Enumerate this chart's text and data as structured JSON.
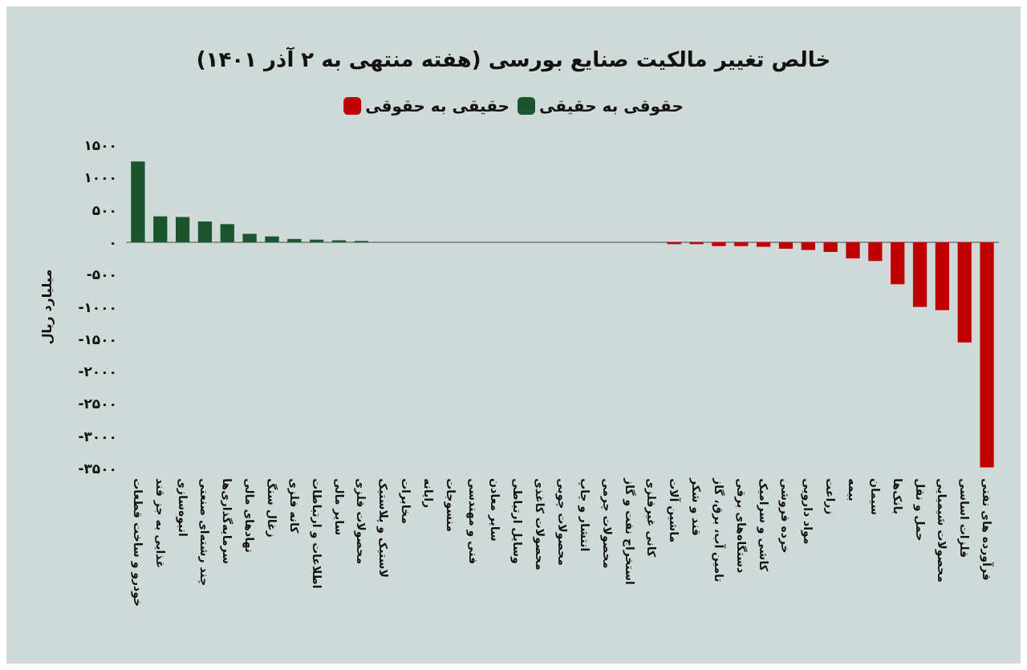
{
  "chart_data": {
    "type": "bar",
    "title": "خالص تغییر مالکیت صنایع بورسی (هفته منتهی به ۲ آذر ۱۴۰۱)",
    "ylabel": "میلیارد ریال",
    "legend": "top",
    "categories": [
      "خودرو و ساخت قطعات",
      "غذایی به جز قند",
      "انبوه‌سازی",
      "چند رشته‌ای صنعتی",
      "سرمایه‌گذاری‌ها",
      "نهادهای مالی",
      "زغال سنگ",
      "کانه فلزی",
      "اطلاعات و ارتباطات",
      "سایر مالی",
      "محصولات فلزی",
      "لاستیک و پلاستیک",
      "مخابرات",
      "رایانه",
      "منسوجات",
      "فنی و مهندسی",
      "سایر معادن",
      "وسایل ارتباطی",
      "محصولات کاغذی",
      "محصولات چوبی",
      "انتشار و چاپ",
      "محصولات چرمی",
      "استخراج نفت و گاز",
      "کانی غیرفلزی",
      "ماشین آلات",
      "قند و شکر",
      "تامین آب، برق، گاز",
      "دستگاه‌های برقی",
      "کاشی و سرامیک",
      "خرده فروشی",
      "مواد دارویی",
      "زراعت",
      "بیمه",
      "سیمان",
      "بانک‌ها",
      "حمل و نقل",
      "محصولات شیمیایی",
      "فلزات اساسی",
      "فرآورده های نفتی"
    ],
    "series": [
      {
        "name": "حقوقی به حقیقی",
        "color": "#1b5530",
        "values": [
          1250,
          400,
          390,
          320,
          280,
          130,
          90,
          50,
          40,
          30,
          20,
          null,
          null,
          null,
          null,
          null,
          null,
          null,
          null,
          null,
          null,
          null,
          null,
          null,
          null,
          null,
          null,
          null,
          null,
          null,
          null,
          null,
          null,
          null,
          null,
          null,
          null,
          null,
          null
        ]
      },
      {
        "name": "حقیقی به حقوقی",
        "color": "#c00000",
        "values": [
          null,
          null,
          null,
          null,
          null,
          null,
          null,
          null,
          null,
          null,
          null,
          null,
          null,
          null,
          null,
          null,
          null,
          null,
          null,
          null,
          null,
          null,
          null,
          null,
          -30,
          -30,
          -60,
          -60,
          -70,
          -100,
          -120,
          -150,
          -250,
          -290,
          -650,
          -1000,
          -1050,
          -1550,
          -3480
        ]
      }
    ],
    "ylim": [
      -3500,
      1500
    ],
    "yticks": [
      {
        "value": 1500,
        "label": "۱۵۰۰"
      },
      {
        "value": 1000,
        "label": "۱۰۰۰"
      },
      {
        "value": 500,
        "label": "۵۰۰"
      },
      {
        "value": 0,
        "label": "۰"
      },
      {
        "value": -500,
        "label": "-۵۰۰"
      },
      {
        "value": -1000,
        "label": "-۱۰۰۰"
      },
      {
        "value": -1500,
        "label": "-۱۵۰۰"
      },
      {
        "value": -2000,
        "label": "-۲۰۰۰"
      },
      {
        "value": -2500,
        "label": "-۲۵۰۰"
      },
      {
        "value": -3000,
        "label": "-۳۰۰۰"
      },
      {
        "value": -3500,
        "label": "-۳۵۰۰"
      }
    ]
  }
}
